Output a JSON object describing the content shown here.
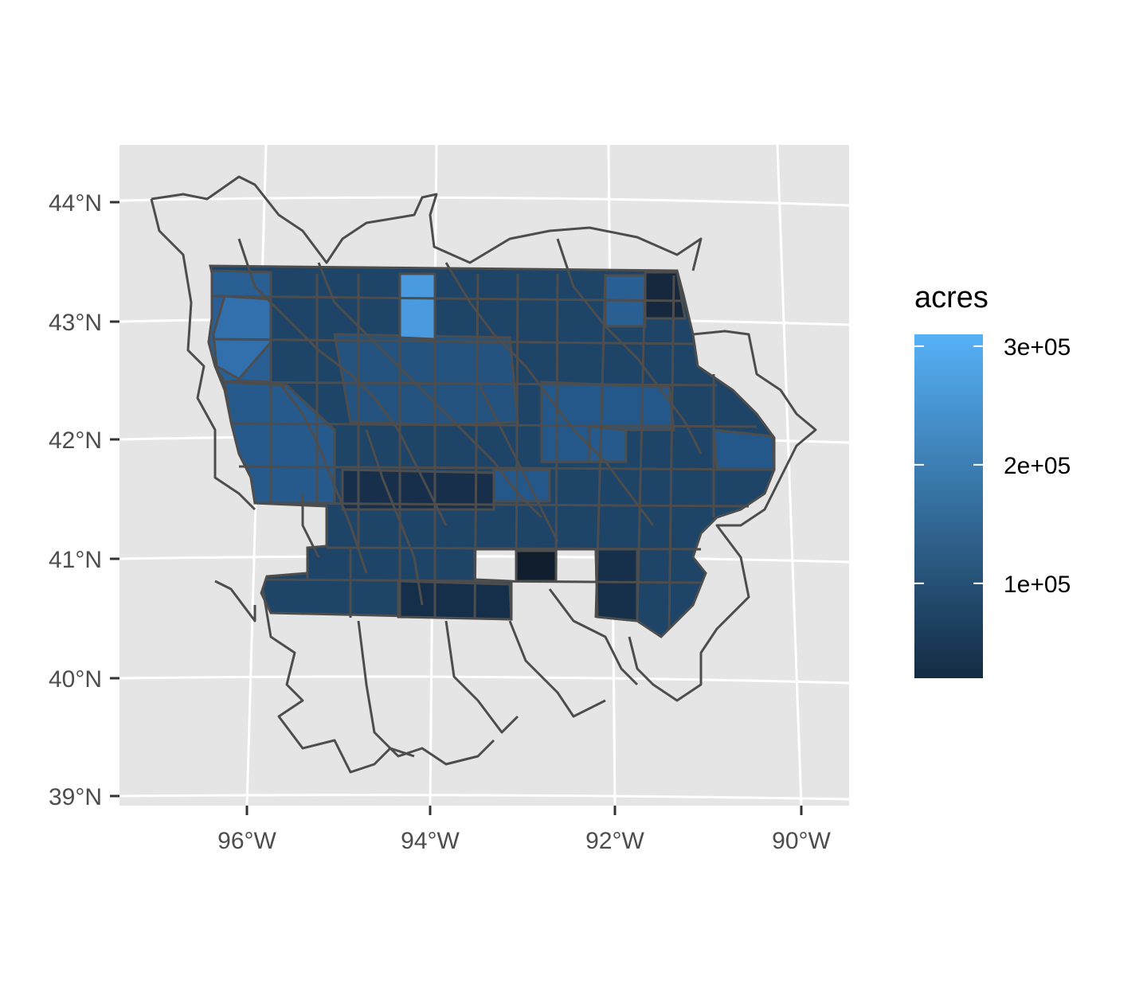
{
  "map": {
    "latitude_labels": [
      "44°N",
      "43°N",
      "42°N",
      "41°N",
      "40°N",
      "39°N"
    ],
    "longitude_labels": [
      "96°W",
      "94°W",
      "92°W",
      "90°W"
    ],
    "legend": {
      "title": "acres",
      "labels": [
        "3e+05",
        "2e+05",
        "1e+05"
      ],
      "breaks": [
        300000,
        200000,
        100000
      ],
      "range": [
        20000,
        310000
      ],
      "color_low": "#132B43",
      "color_high": "#56B1F7"
    },
    "panel_background": "#e5e5e5",
    "border_color": "#4d4d4d"
  }
}
